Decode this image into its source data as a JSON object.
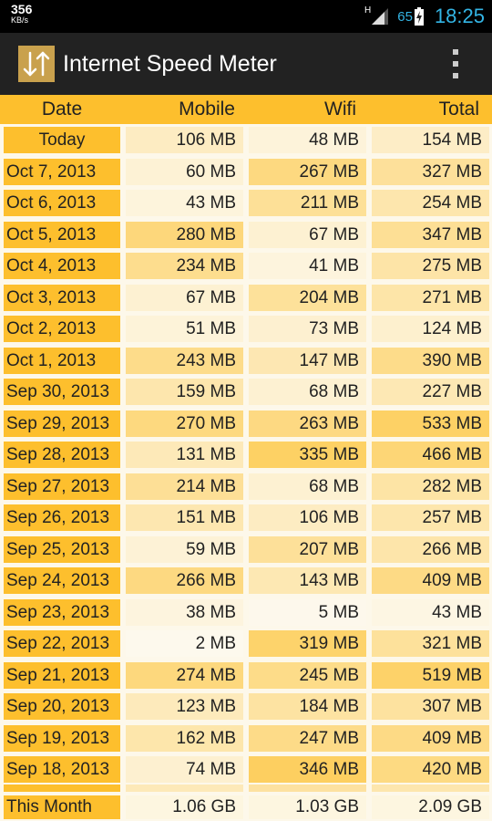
{
  "status_bar": {
    "speed_value": "356",
    "speed_unit": "KB/s",
    "network_type": "H",
    "battery_percent": "65",
    "time": "18:25"
  },
  "app": {
    "title": "Internet Speed Meter",
    "icon": "speed-arrows-icon"
  },
  "headers": {
    "date": "Date",
    "mobile": "Mobile",
    "wifi": "Wifi",
    "total": "Total"
  },
  "rows": [
    {
      "date": "Today",
      "mobile": "106 MB",
      "wifi": "48 MB",
      "total": "154 MB"
    },
    {
      "date": "Oct 7, 2013",
      "mobile": "60 MB",
      "wifi": "267 MB",
      "total": "327 MB"
    },
    {
      "date": "Oct 6, 2013",
      "mobile": "43 MB",
      "wifi": "211 MB",
      "total": "254 MB"
    },
    {
      "date": "Oct 5, 2013",
      "mobile": "280 MB",
      "wifi": "67 MB",
      "total": "347 MB"
    },
    {
      "date": "Oct 4, 2013",
      "mobile": "234 MB",
      "wifi": "41 MB",
      "total": "275 MB"
    },
    {
      "date": "Oct 3, 2013",
      "mobile": "67 MB",
      "wifi": "204 MB",
      "total": "271 MB"
    },
    {
      "date": "Oct 2, 2013",
      "mobile": "51 MB",
      "wifi": "73 MB",
      "total": "124 MB"
    },
    {
      "date": "Oct 1, 2013",
      "mobile": "243 MB",
      "wifi": "147 MB",
      "total": "390 MB"
    },
    {
      "date": "Sep 30, 2013",
      "mobile": "159 MB",
      "wifi": "68 MB",
      "total": "227 MB"
    },
    {
      "date": "Sep 29, 2013",
      "mobile": "270 MB",
      "wifi": "263 MB",
      "total": "533 MB"
    },
    {
      "date": "Sep 28, 2013",
      "mobile": "131 MB",
      "wifi": "335 MB",
      "total": "466 MB"
    },
    {
      "date": "Sep 27, 2013",
      "mobile": "214 MB",
      "wifi": "68 MB",
      "total": "282 MB"
    },
    {
      "date": "Sep 26, 2013",
      "mobile": "151 MB",
      "wifi": "106 MB",
      "total": "257 MB"
    },
    {
      "date": "Sep 25, 2013",
      "mobile": "59 MB",
      "wifi": "207 MB",
      "total": "266 MB"
    },
    {
      "date": "Sep 24, 2013",
      "mobile": "266 MB",
      "wifi": "143 MB",
      "total": "409 MB"
    },
    {
      "date": "Sep 23, 2013",
      "mobile": "38 MB",
      "wifi": "5 MB",
      "total": "43 MB"
    },
    {
      "date": "Sep 22, 2013",
      "mobile": "2 MB",
      "wifi": "319 MB",
      "total": "321 MB"
    },
    {
      "date": "Sep 21, 2013",
      "mobile": "274 MB",
      "wifi": "245 MB",
      "total": "519 MB"
    },
    {
      "date": "Sep 20, 2013",
      "mobile": "123 MB",
      "wifi": "184 MB",
      "total": "307 MB"
    },
    {
      "date": "Sep 19, 2013",
      "mobile": "162 MB",
      "wifi": "247 MB",
      "total": "409 MB"
    },
    {
      "date": "Sep 18, 2013",
      "mobile": "74 MB",
      "wifi": "346 MB",
      "total": "420 MB"
    }
  ],
  "footer": {
    "label": "This Month",
    "mobile": "1.06 GB",
    "wifi": "1.03 GB",
    "total": "2.09 GB"
  },
  "colors": {
    "accent": "#fdbf2d",
    "background": "#fdf8ea",
    "action_bar": "#222222",
    "status_blue": "#33b5e5"
  }
}
